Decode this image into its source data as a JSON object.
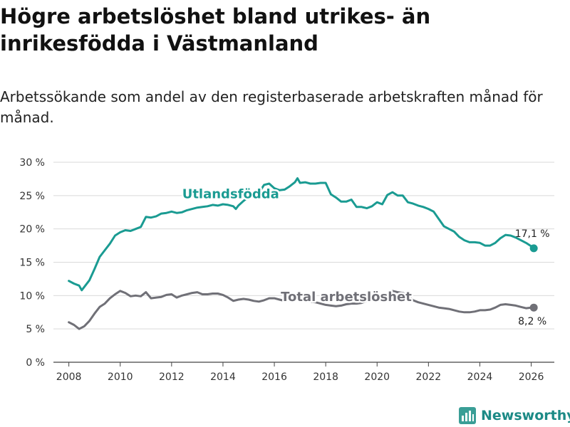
{
  "header": {
    "title": "Högre arbetslöshet bland utrikes- än inrikesfödda i Västmanland",
    "subtitle": "Arbetssökande som andel av den registerbaserade arbetskraften månad för månad."
  },
  "brand": {
    "name": "Newsworthy",
    "logo_icon": "bar-chart-logo-icon",
    "color": "#3a9e96"
  },
  "chart_data": {
    "type": "line",
    "title": "Högre arbetslöshet bland utrikes- än inrikesfödda i Västmanland",
    "subtitle": "Arbetssökande som andel av den registerbaserade arbetskraften månad för månad.",
    "xlabel": "",
    "ylabel": "",
    "xlim": [
      2007.4,
      2026.9
    ],
    "ylim": [
      0,
      30
    ],
    "grid": true,
    "x_ticks": [
      2008,
      2010,
      2012,
      2014,
      2016,
      2018,
      2020,
      2022,
      2024,
      2026
    ],
    "x_tick_labels": [
      "2008",
      "2010",
      "2012",
      "2014",
      "2016",
      "2018",
      "2020",
      "2022",
      "2024",
      "2026"
    ],
    "y_ticks": [
      0,
      5,
      10,
      15,
      20,
      25,
      30
    ],
    "y_tick_labels": [
      "0 %",
      "5 %",
      "10 %",
      "15 %",
      "20 %",
      "25 %",
      "30 %"
    ],
    "series": [
      {
        "name": "Utlandsfödda",
        "color": "#1a9b92",
        "end_label": "17,1 %",
        "x": [
          2008.0,
          2008.2,
          2008.4,
          2008.5,
          2008.6,
          2008.8,
          2009.0,
          2009.2,
          2009.4,
          2009.6,
          2009.8,
          2010.0,
          2010.2,
          2010.4,
          2010.6,
          2010.8,
          2011.0,
          2011.2,
          2011.4,
          2011.6,
          2011.8,
          2012.0,
          2012.2,
          2012.4,
          2012.6,
          2012.8,
          2013.0,
          2013.2,
          2013.4,
          2013.6,
          2013.8,
          2014.0,
          2014.2,
          2014.4,
          2014.5,
          2014.6,
          2014.8,
          2015.0,
          2015.2,
          2015.4,
          2015.6,
          2015.8,
          2016.0,
          2016.2,
          2016.4,
          2016.6,
          2016.8,
          2016.9,
          2017.0,
          2017.2,
          2017.4,
          2017.6,
          2017.8,
          2018.0,
          2018.2,
          2018.4,
          2018.6,
          2018.8,
          2019.0,
          2019.2,
          2019.4,
          2019.6,
          2019.8,
          2020.0,
          2020.2,
          2020.4,
          2020.6,
          2020.8,
          2021.0,
          2021.2,
          2021.4,
          2021.6,
          2021.8,
          2022.0,
          2022.2,
          2022.4,
          2022.6,
          2022.8,
          2023.0,
          2023.2,
          2023.4,
          2023.6,
          2023.8,
          2024.0,
          2024.2,
          2024.4,
          2024.6,
          2024.8,
          2025.0,
          2025.2,
          2025.4,
          2025.6,
          2025.8,
          2026.0,
          2026.1
        ],
        "values": [
          12.2,
          11.8,
          11.5,
          10.8,
          11.3,
          12.3,
          14.0,
          15.8,
          16.8,
          17.8,
          19.0,
          19.5,
          19.8,
          19.7,
          20.0,
          20.3,
          21.8,
          21.7,
          21.9,
          22.3,
          22.4,
          22.6,
          22.4,
          22.5,
          22.8,
          23.0,
          23.2,
          23.3,
          23.4,
          23.6,
          23.5,
          23.7,
          23.6,
          23.4,
          23.0,
          23.5,
          24.2,
          24.8,
          25.0,
          25.4,
          26.6,
          26.8,
          26.1,
          25.8,
          25.9,
          26.4,
          27.0,
          27.6,
          26.9,
          27.0,
          26.8,
          26.8,
          26.9,
          26.9,
          25.2,
          24.7,
          24.1,
          24.1,
          24.4,
          23.3,
          23.3,
          23.1,
          23.4,
          24.0,
          23.7,
          25.1,
          25.5,
          25.0,
          25.0,
          24.0,
          23.8,
          23.5,
          23.3,
          23.0,
          22.6,
          21.5,
          20.4,
          20.0,
          19.6,
          18.8,
          18.3,
          18.0,
          18.0,
          17.9,
          17.5,
          17.5,
          17.9,
          18.6,
          19.1,
          19.0,
          18.7,
          18.3,
          17.9,
          17.4,
          17.1
        ]
      },
      {
        "name": "Total arbetslöshet",
        "color": "#707077",
        "end_label": "8,2 %",
        "x": [
          2008.0,
          2008.2,
          2008.4,
          2008.6,
          2008.8,
          2009.0,
          2009.2,
          2009.4,
          2009.6,
          2009.8,
          2010.0,
          2010.2,
          2010.4,
          2010.6,
          2010.8,
          2011.0,
          2011.2,
          2011.4,
          2011.6,
          2011.8,
          2012.0,
          2012.2,
          2012.4,
          2012.6,
          2012.8,
          2013.0,
          2013.2,
          2013.4,
          2013.6,
          2013.8,
          2014.0,
          2014.2,
          2014.4,
          2014.6,
          2014.8,
          2015.0,
          2015.2,
          2015.4,
          2015.6,
          2015.8,
          2016.0,
          2016.2,
          2016.4,
          2016.6,
          2016.8,
          2017.0,
          2017.2,
          2017.4,
          2017.6,
          2017.8,
          2018.0,
          2018.2,
          2018.4,
          2018.6,
          2018.8,
          2019.0,
          2019.2,
          2019.4,
          2019.6,
          2019.8,
          2020.0,
          2020.2,
          2020.4,
          2020.6,
          2020.8,
          2021.0,
          2021.2,
          2021.4,
          2021.6,
          2021.8,
          2022.0,
          2022.2,
          2022.4,
          2022.6,
          2022.8,
          2023.0,
          2023.2,
          2023.4,
          2023.6,
          2023.8,
          2024.0,
          2024.2,
          2024.4,
          2024.6,
          2024.8,
          2025.0,
          2025.2,
          2025.4,
          2025.6,
          2025.8,
          2026.0,
          2026.1
        ],
        "values": [
          6.0,
          5.6,
          5.0,
          5.4,
          6.2,
          7.3,
          8.3,
          8.8,
          9.6,
          10.2,
          10.7,
          10.4,
          9.9,
          10.0,
          9.9,
          10.5,
          9.6,
          9.7,
          9.8,
          10.1,
          10.2,
          9.7,
          10.0,
          10.2,
          10.4,
          10.5,
          10.2,
          10.2,
          10.3,
          10.3,
          10.1,
          9.7,
          9.2,
          9.4,
          9.5,
          9.4,
          9.2,
          9.1,
          9.3,
          9.6,
          9.6,
          9.4,
          9.2,
          9.3,
          9.4,
          9.3,
          9.2,
          9.1,
          9.0,
          8.8,
          8.6,
          8.5,
          8.4,
          8.5,
          8.7,
          8.8,
          8.8,
          8.9,
          9.2,
          9.3,
          9.6,
          9.9,
          10.2,
          10.7,
          10.5,
          10.4,
          10.0,
          9.3,
          9.0,
          8.8,
          8.6,
          8.4,
          8.2,
          8.1,
          8.0,
          7.8,
          7.6,
          7.5,
          7.5,
          7.6,
          7.8,
          7.8,
          7.9,
          8.2,
          8.6,
          8.7,
          8.6,
          8.5,
          8.3,
          8.1,
          8.2,
          8.2
        ]
      }
    ],
    "annotations": [
      {
        "text": "Utlandsfödda",
        "series": "Utlandsfödda",
        "x": 2014.3,
        "y": 24.6
      },
      {
        "text": "Total arbetslöshet",
        "series": "Total arbetslöshet",
        "x": 2018.8,
        "y": 9.2
      }
    ]
  }
}
